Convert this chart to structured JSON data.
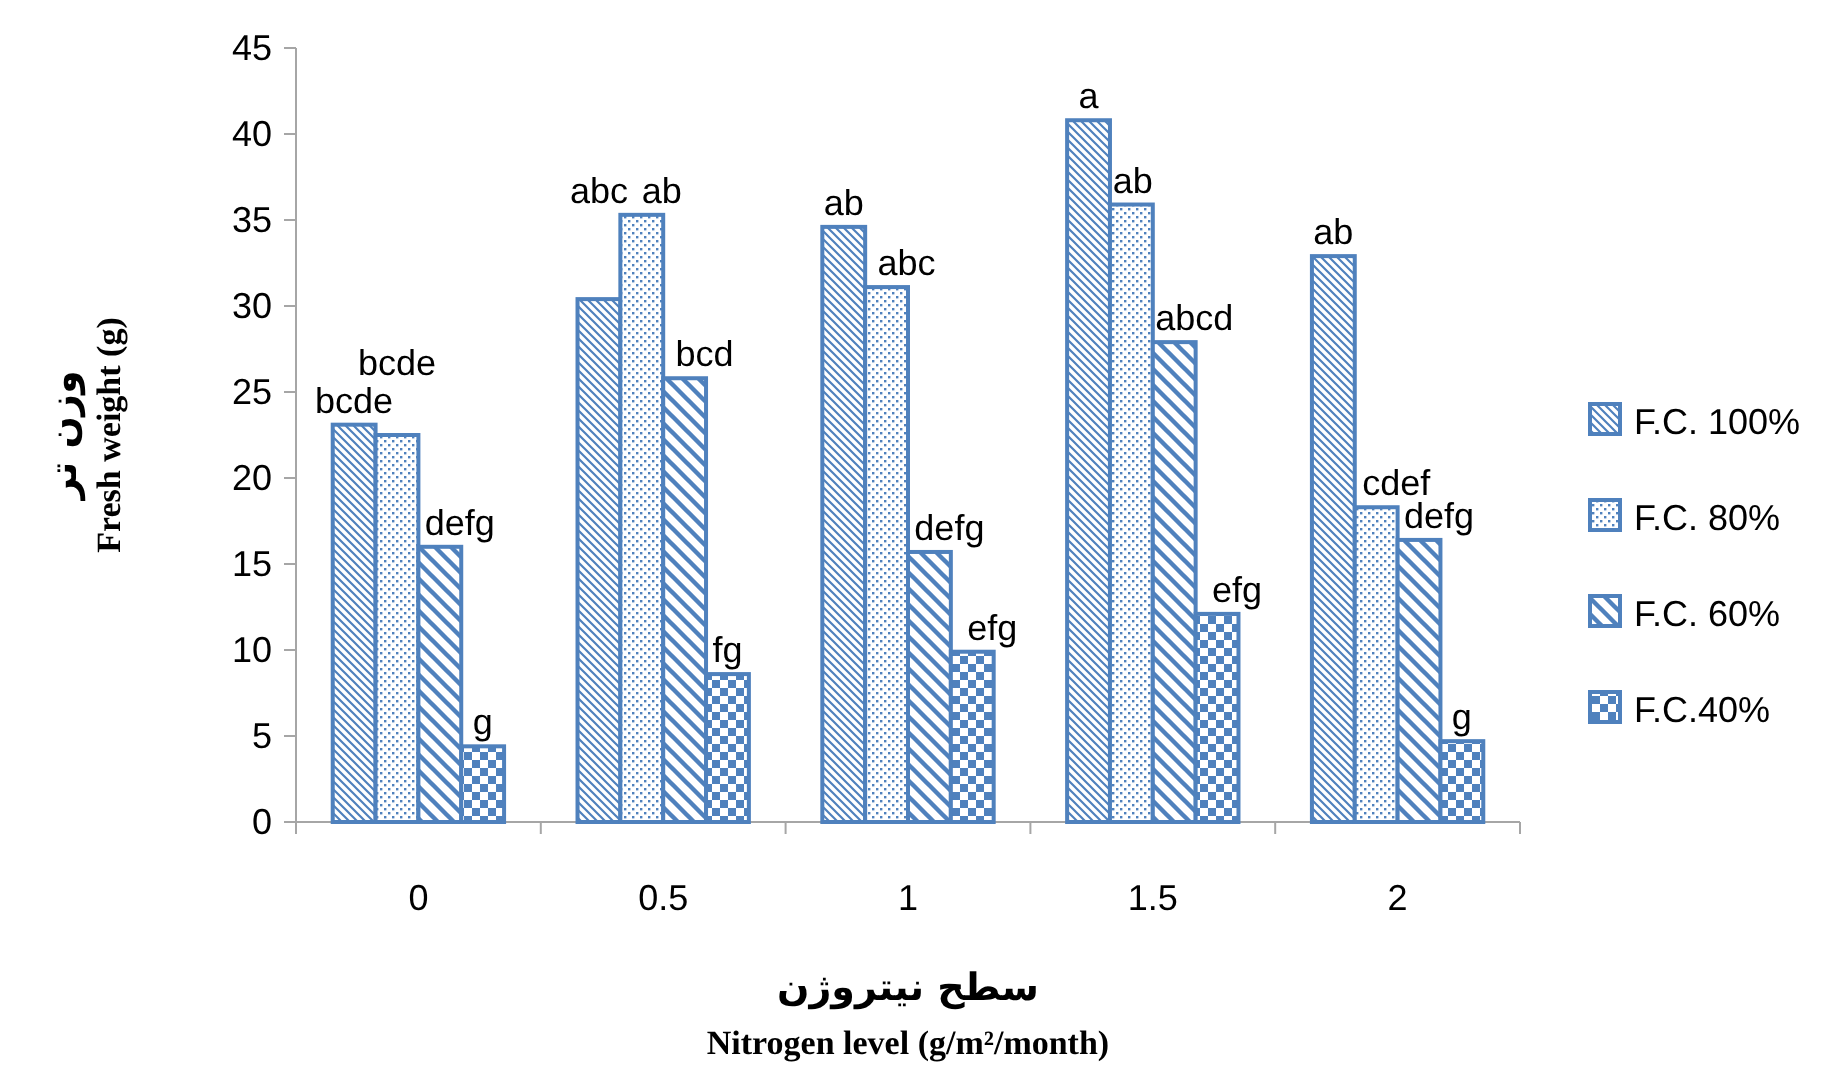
{
  "chart_data": {
    "type": "bar",
    "xlabel": [
      "سطح نیتروژن",
      "Nitrogen level (g/m²/month)"
    ],
    "ylabel": [
      "وزن تر",
      "Fresh weight (g)"
    ],
    "categories": [
      "0",
      "0.5",
      "1",
      "1.5",
      "2"
    ],
    "series": [
      {
        "name": "F.C. 100%",
        "color": "#4f81bd",
        "values": [
          23.1,
          30.4,
          34.6,
          40.8,
          32.9
        ],
        "value_labels": [
          "bcde",
          "abc",
          "ab",
          "a",
          "ab"
        ]
      },
      {
        "name": "F.C. 80%",
        "color": "#4f81bd",
        "values": [
          22.5,
          35.3,
          31.1,
          35.9,
          18.3
        ],
        "value_labels": [
          "bcde",
          "ab",
          "abc",
          "ab",
          "cdef"
        ]
      },
      {
        "name": "F.C. 60%",
        "color": "#4f81bd",
        "values": [
          16.0,
          25.8,
          15.7,
          27.9,
          16.4
        ],
        "value_labels": [
          "defg",
          "bcd",
          "defg",
          "abcd",
          "defg"
        ]
      },
      {
        "name": "F.C.40%",
        "color": "#4f81bd",
        "values": [
          4.4,
          8.6,
          9.9,
          12.1,
          4.7
        ],
        "value_labels": [
          "g",
          "fg",
          "efg",
          "efg",
          "g"
        ]
      }
    ],
    "ylim": [
      0,
      45
    ],
    "yticks": [
      0,
      5,
      10,
      15,
      20,
      25,
      30,
      35,
      40,
      45
    ],
    "legend": "right"
  }
}
